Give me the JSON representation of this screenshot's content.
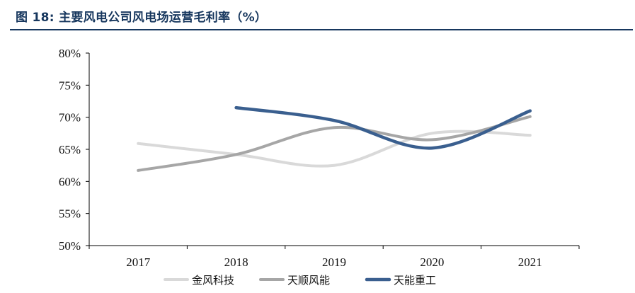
{
  "figure": {
    "title": "图 18:  主要风电公司风电场运营毛利率（%）"
  },
  "chart_data": {
    "type": "line",
    "title": "",
    "xlabel": "",
    "ylabel": "",
    "categories": [
      "2017",
      "2018",
      "2019",
      "2020",
      "2021"
    ],
    "ylim": [
      50,
      80
    ],
    "yticks": [
      50,
      55,
      60,
      65,
      70,
      75,
      80
    ],
    "ytick_labels": [
      "50%",
      "55%",
      "60%",
      "65%",
      "70%",
      "75%",
      "80%"
    ],
    "grid": false,
    "smooth": true,
    "legend_position": "bottom",
    "series": [
      {
        "name": "金风科技",
        "values": [
          65.9,
          64.2,
          62.5,
          67.5,
          67.2
        ],
        "color": "#d9d9d9"
      },
      {
        "name": "天顺风能",
        "values": [
          61.7,
          64.2,
          68.4,
          66.5,
          70.1
        ],
        "color": "#a6a6a6"
      },
      {
        "name": "天能重工",
        "values": [
          null,
          71.5,
          69.5,
          65.2,
          71.0
        ],
        "color": "#3a5f8f"
      }
    ]
  }
}
